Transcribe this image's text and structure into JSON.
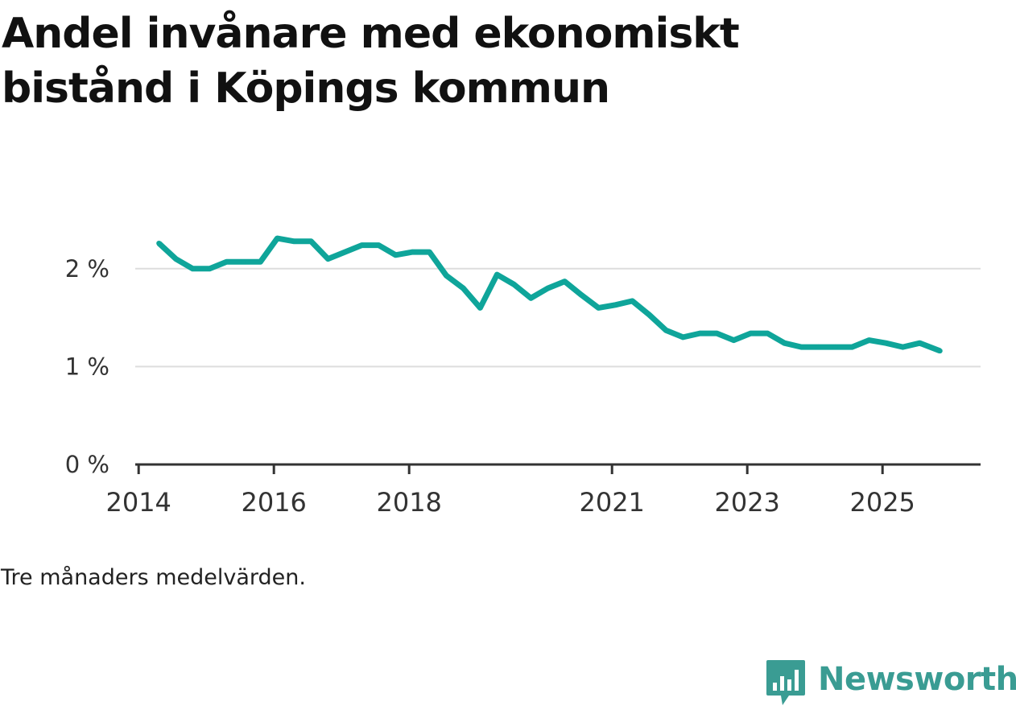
{
  "title": "Andel invånare med ekonomiskt bistånd i Köpings kommun",
  "caption": "Tre månaders medelvärden.",
  "brand": {
    "name": "Newsworthy",
    "color": "#3a9c93"
  },
  "colors": {
    "line": "#0fa59a",
    "grid": "#dddddd",
    "axis": "#333333"
  },
  "chart_data": {
    "type": "line",
    "title": "Andel invånare med ekonomiskt bistånd i Köpings kommun",
    "xlabel": "",
    "ylabel": "",
    "ylim": [
      0,
      2.5
    ],
    "xlim": [
      2013.95,
      2026.45
    ],
    "yticks": [
      0,
      1,
      2
    ],
    "ytick_labels": [
      "0 %",
      "1 %",
      "2 %"
    ],
    "xticks": [
      2014,
      2016,
      2018,
      2021,
      2023,
      2025
    ],
    "xtick_labels": [
      "2014",
      "2016",
      "2018",
      "2021",
      "2023",
      "2025"
    ],
    "grid": true,
    "series": [
      {
        "name": "Andel invånare med ekonomiskt bistånd",
        "x": [
          2014.3,
          2014.55,
          2014.8,
          2015.05,
          2015.3,
          2015.55,
          2015.8,
          2016.05,
          2016.3,
          2016.55,
          2016.8,
          2017.05,
          2017.3,
          2017.55,
          2017.8,
          2018.05,
          2018.3,
          2018.55,
          2018.8,
          2019.05,
          2019.3,
          2019.55,
          2019.8,
          2020.05,
          2020.3,
          2020.55,
          2020.8,
          2021.05,
          2021.3,
          2021.55,
          2021.8,
          2022.05,
          2022.3,
          2022.55,
          2022.8,
          2023.05,
          2023.3,
          2023.55,
          2023.8,
          2024.05,
          2024.3,
          2024.55,
          2024.8,
          2025.05,
          2025.3,
          2025.55,
          2025.85
        ],
        "values": [
          2.26,
          2.1,
          2.0,
          2.0,
          2.07,
          2.07,
          2.07,
          2.31,
          2.28,
          2.28,
          2.1,
          2.17,
          2.24,
          2.24,
          2.14,
          2.17,
          2.17,
          1.93,
          1.8,
          1.6,
          1.94,
          1.84,
          1.7,
          1.8,
          1.87,
          1.73,
          1.6,
          1.63,
          1.67,
          1.53,
          1.37,
          1.3,
          1.34,
          1.34,
          1.27,
          1.34,
          1.34,
          1.24,
          1.2,
          1.2,
          1.2,
          1.2,
          1.27,
          1.24,
          1.2,
          1.24,
          1.16
        ]
      }
    ]
  }
}
